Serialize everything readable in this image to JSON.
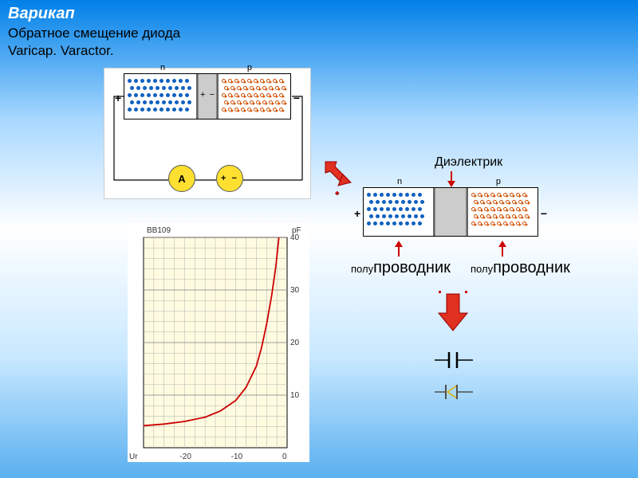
{
  "title": "Варикап",
  "subtitle_line1": "Обратное смещение диода",
  "subtitle_line2": "Varicap. Varactor.",
  "junction": {
    "n_label": "n",
    "p_label": "p",
    "plus": "+",
    "minus": "−",
    "ammeter": "A",
    "battery": "+  −",
    "dot_blue_color": "#1060c0",
    "dot_orange_color": "#d05000"
  },
  "chart": {
    "title": "BB109",
    "y_unit": "pF",
    "x_unit": "Ur",
    "y_max": 40,
    "y_ticks": [
      10,
      20,
      30,
      40
    ],
    "x_ticks": [
      -20,
      -10,
      0
    ],
    "x_min": -28,
    "x_max": 0,
    "grid_bg": "#fffbe0",
    "grid_color": "#b0b0b0",
    "curve_color": "#cc0000",
    "curve_width": 1.8,
    "curve_points": [
      [
        -28,
        4.2
      ],
      [
        -24,
        4.5
      ],
      [
        -20,
        5.0
      ],
      [
        -16,
        5.8
      ],
      [
        -13,
        7.0
      ],
      [
        -10,
        9.0
      ],
      [
        -8,
        11.5
      ],
      [
        -6,
        15.5
      ],
      [
        -5,
        19.0
      ],
      [
        -4,
        23.5
      ],
      [
        -3,
        29.0
      ],
      [
        -2.2,
        34.5
      ],
      [
        -1.6,
        40.0
      ]
    ]
  },
  "labels": {
    "dielectric": "Диэлектрик",
    "semi_prefix": "полу",
    "semi_main": "проводник"
  },
  "colors": {
    "arrow_red": "#e03020",
    "arrow_corner": "#c00000"
  }
}
